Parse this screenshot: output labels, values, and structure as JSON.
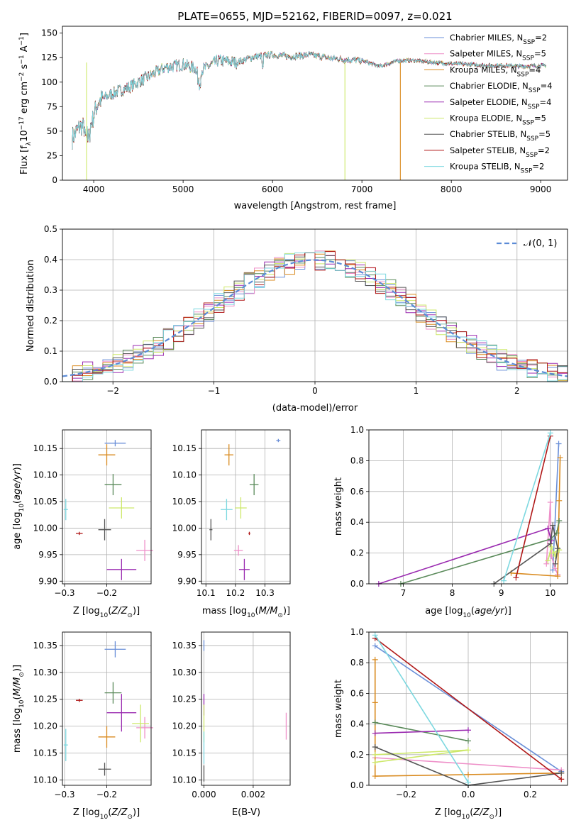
{
  "chart_data": [
    {
      "type": "line",
      "title": "PLATE=0655, MJD=52162, FIBERID=0097, z=0.021",
      "xlabel": "wavelength [Angstrom, rest frame]",
      "ylabel": "Flux [f_λ10^-17 erg cm^-2 s^-1 A^-1]",
      "xlim": [
        3650,
        9300
      ],
      "ylim": [
        0,
        157
      ],
      "xticks": [
        4000,
        5000,
        6000,
        7000,
        8000,
        9000
      ],
      "yticks": [
        0,
        25,
        50,
        75,
        100,
        125,
        150
      ],
      "legend_position": "top-right",
      "continuum_x": [
        3750,
        3850,
        3950,
        4050,
        4200,
        4400,
        4600,
        4800,
        5000,
        5200,
        5400,
        5600,
        5800,
        6000,
        6200,
        6400,
        6600,
        6800,
        7000,
        7200,
        7400,
        7600,
        7800,
        8000,
        8200,
        8400,
        8600,
        8800,
        9000
      ],
      "continuum_y": [
        42,
        55,
        52,
        80,
        88,
        95,
        105,
        115,
        118,
        112,
        122,
        120,
        126,
        128,
        126,
        128,
        125,
        123,
        122,
        116,
        122,
        122,
        120,
        119,
        118,
        117,
        117,
        116,
        117
      ],
      "series": [
        {
          "name": "Chabrier MILES, N_SSP=2",
          "label_main": "Chabrier MILES, N",
          "label_sub": "SSP",
          "label_tail": "=2",
          "color": "#6a8fd8"
        },
        {
          "name": "Salpeter MILES, N_SSP=5",
          "label_main": "Salpeter MILES, N",
          "label_sub": "SSP",
          "label_tail": "=5",
          "color": "#ee8fc8"
        },
        {
          "name": "Kroupa MILES, N_SSP=4",
          "label_main": "Kroupa MILES, N",
          "label_sub": "SSP",
          "label_tail": "=4",
          "color": "#d98a1e"
        },
        {
          "name": "Chabrier ELODIE, N_SSP=4",
          "label_main": "Chabrier ELODIE, N",
          "label_sub": "SSP",
          "label_tail": "=4",
          "color": "#5a8a5a"
        },
        {
          "name": "Salpeter ELODIE, N_SSP=4",
          "label_main": "Salpeter ELODIE, N",
          "label_sub": "SSP",
          "label_tail": "=4",
          "color": "#9a2ab0"
        },
        {
          "name": "Kroupa ELODIE, N_SSP=5",
          "label_main": "Kroupa ELODIE, N",
          "label_sub": "SSP",
          "label_tail": "=5",
          "color": "#cde86a"
        },
        {
          "name": "Chabrier STELIB, N_SSP=5",
          "label_main": "Chabrier STELIB, N",
          "label_sub": "SSP",
          "label_tail": "=5",
          "color": "#555555"
        },
        {
          "name": "Salpeter STELIB, N_SSP=2",
          "label_main": "Salpeter STELIB, N",
          "label_sub": "SSP",
          "label_tail": "=2",
          "color": "#b01818"
        },
        {
          "name": "Kroupa STELIB, N_SSP=2",
          "label_main": "Kroupa STELIB, N",
          "label_sub": "SSP",
          "label_tail": "=2",
          "color": "#7dd8e0"
        }
      ],
      "dropouts": [
        {
          "x": 3920,
          "color": "#cde86a"
        },
        {
          "x": 6810,
          "color": "#cde86a"
        },
        {
          "x": 7430,
          "color": "#d98a1e"
        }
      ]
    },
    {
      "type": "line",
      "xlabel": "(data-model)/error",
      "ylabel": "Normed distribution",
      "xlim": [
        -2.5,
        2.5
      ],
      "ylim": [
        0,
        0.5
      ],
      "xticks": [
        -2,
        -1,
        0,
        1,
        2
      ],
      "yticks": [
        0.0,
        0.1,
        0.2,
        0.3,
        0.4,
        0.5
      ],
      "legend_position": "top-right",
      "reference_curve": {
        "name": "N(0, 1)",
        "color": "#5b8bd6"
      },
      "bin_width": 0.1
    },
    {
      "type": "scatter",
      "xlabel": "Z [log10(Z/Z_sun)]",
      "ylabel": "age [log10(age/yr)]",
      "xlim": [
        -0.305,
        -0.095
      ],
      "ylim": [
        9.895,
        10.185
      ],
      "xticks": [
        -0.3,
        -0.2
      ],
      "yticks": [
        9.9,
        9.95,
        10.0,
        10.05,
        10.1,
        10.15
      ],
      "points": [
        {
          "x": -0.18,
          "xerr": 0.025,
          "y": 10.16,
          "yerr": 0.006,
          "color": "#6a8fd8"
        },
        {
          "x": -0.11,
          "xerr": 0.02,
          "y": 9.958,
          "yerr": 0.02,
          "color": "#ee8fc8"
        },
        {
          "x": -0.2,
          "xerr": 0.02,
          "y": 10.138,
          "yerr": 0.02,
          "color": "#d98a1e"
        },
        {
          "x": -0.185,
          "xerr": 0.02,
          "y": 10.082,
          "yerr": 0.02,
          "color": "#5a8a5a"
        },
        {
          "x": -0.165,
          "xerr": 0.035,
          "y": 9.922,
          "yerr": 0.02,
          "color": "#9a2ab0"
        },
        {
          "x": -0.165,
          "xerr": 0.03,
          "y": 10.038,
          "yerr": 0.02,
          "color": "#cde86a"
        },
        {
          "x": -0.205,
          "xerr": 0.015,
          "y": 9.997,
          "yerr": 0.02,
          "color": "#555555"
        },
        {
          "x": -0.265,
          "xerr": 0.008,
          "y": 9.99,
          "yerr": 0.003,
          "color": "#b01818"
        },
        {
          "x": -0.297,
          "xerr": 0.005,
          "y": 10.035,
          "yerr": 0.02,
          "color": "#7dd8e0"
        }
      ]
    },
    {
      "type": "scatter",
      "xlabel": "mass [log10(M/M_sun)]",
      "xlim": [
        10.085,
        10.385
      ],
      "ylim": [
        9.895,
        10.185
      ],
      "xticks": [
        10.1,
        10.2,
        10.3
      ],
      "yticks": [
        9.9,
        9.95,
        10.0,
        10.05,
        10.1,
        10.15
      ],
      "points": [
        {
          "x": 10.345,
          "xerr": 0.007,
          "y": 10.165,
          "yerr": 0.003,
          "color": "#6a8fd8"
        },
        {
          "x": 10.21,
          "xerr": 0.015,
          "y": 9.958,
          "yerr": 0.01,
          "color": "#ee8fc8"
        },
        {
          "x": 10.178,
          "xerr": 0.015,
          "y": 10.138,
          "yerr": 0.02,
          "color": "#d98a1e"
        },
        {
          "x": 10.263,
          "xerr": 0.015,
          "y": 10.082,
          "yerr": 0.02,
          "color": "#5a8a5a"
        },
        {
          "x": 10.23,
          "xerr": 0.018,
          "y": 9.922,
          "yerr": 0.02,
          "color": "#9a2ab0"
        },
        {
          "x": 10.218,
          "xerr": 0.02,
          "y": 10.038,
          "yerr": 0.02,
          "color": "#cde86a"
        },
        {
          "x": 10.117,
          "xerr": 0.005,
          "y": 9.997,
          "yerr": 0.02,
          "color": "#555555"
        },
        {
          "x": 10.247,
          "xerr": 0.003,
          "y": 9.99,
          "yerr": 0.003,
          "color": "#b01818"
        },
        {
          "x": 10.17,
          "xerr": 0.02,
          "y": 10.035,
          "yerr": 0.02,
          "color": "#7dd8e0"
        }
      ]
    },
    {
      "type": "line",
      "xlabel": "age [log10(age/yr)]",
      "ylabel": "mass weight",
      "xlim": [
        6.3,
        10.35
      ],
      "ylim": [
        0,
        1
      ],
      "xticks": [
        6,
        7,
        8,
        9,
        10
      ],
      "yticks": [
        0.0,
        0.2,
        0.4,
        0.6,
        0.8,
        1.0
      ],
      "series": [
        {
          "color": "#6a8fd8",
          "x": [
            10.05,
            10.17
          ],
          "y": [
            0.09,
            0.91
          ]
        },
        {
          "color": "#ee8fc8",
          "x": [
            9.92,
            10.0,
            10.02,
            10.1,
            10.15
          ],
          "y": [
            0.13,
            0.53,
            0.18,
            0.1,
            0.06
          ]
        },
        {
          "color": "#d98a1e",
          "x": [
            9.2,
            10.15,
            10.18,
            10.2
          ],
          "y": [
            0.07,
            0.05,
            0.54,
            0.82
          ]
        },
        {
          "color": "#5a8a5a",
          "x": [
            6.95,
            10.0,
            10.13,
            10.18
          ],
          "y": [
            0.0,
            0.29,
            0.33,
            0.41
          ]
        },
        {
          "color": "#9a2ab0",
          "x": [
            6.5,
            9.95,
            10.02
          ],
          "y": [
            0.0,
            0.36,
            0.28
          ]
        },
        {
          "color": "#cde86a",
          "x": [
            9.95,
            10.02,
            10.1,
            10.18,
            10.05
          ],
          "y": [
            0.15,
            0.24,
            0.18,
            0.22,
            0.2
          ]
        },
        {
          "color": "#555555",
          "x": [
            8.85,
            10.0,
            10.05,
            10.15,
            10.1
          ],
          "y": [
            0.0,
            0.26,
            0.38,
            0.23,
            0.13
          ]
        },
        {
          "color": "#b01818",
          "x": [
            9.3,
            10.0
          ],
          "y": [
            0.04,
            0.96
          ]
        },
        {
          "color": "#7dd8e0",
          "x": [
            9.05,
            10.0
          ],
          "y": [
            0.02,
            0.98
          ]
        }
      ]
    },
    {
      "type": "scatter",
      "xlabel": "Z [log10(Z/Z_sun)]",
      "ylabel": "mass [log10(M/M_sun)]",
      "xlim": [
        -0.305,
        -0.095
      ],
      "ylim": [
        10.09,
        10.375
      ],
      "xticks": [
        -0.3,
        -0.2
      ],
      "yticks": [
        10.1,
        10.15,
        10.2,
        10.25,
        10.3,
        10.35
      ],
      "points": [
        {
          "x": -0.18,
          "xerr": 0.025,
          "y": 10.343,
          "yerr": 0.015,
          "color": "#6a8fd8"
        },
        {
          "x": -0.11,
          "xerr": 0.02,
          "y": 10.197,
          "yerr": 0.02,
          "color": "#ee8fc8"
        },
        {
          "x": -0.2,
          "xerr": 0.02,
          "y": 10.18,
          "yerr": 0.02,
          "color": "#d98a1e"
        },
        {
          "x": -0.185,
          "xerr": 0.02,
          "y": 10.262,
          "yerr": 0.02,
          "color": "#5a8a5a"
        },
        {
          "x": -0.165,
          "xerr": 0.035,
          "y": 10.225,
          "yerr": 0.035,
          "color": "#9a2ab0"
        },
        {
          "x": -0.12,
          "xerr": 0.02,
          "y": 10.205,
          "yerr": 0.035,
          "color": "#cde86a"
        },
        {
          "x": -0.205,
          "xerr": 0.015,
          "y": 10.12,
          "yerr": 0.012,
          "color": "#555555"
        },
        {
          "x": -0.265,
          "xerr": 0.008,
          "y": 10.248,
          "yerr": 0.003,
          "color": "#b01818"
        },
        {
          "x": -0.297,
          "xerr": 0.005,
          "y": 10.165,
          "yerr": 0.03,
          "color": "#7dd8e0"
        }
      ]
    },
    {
      "type": "scatter",
      "xlabel": "E(B-V)",
      "xlim": [
        -0.0001,
        0.0035
      ],
      "ylim": [
        10.09,
        10.375
      ],
      "xticks": [
        0.0,
        0.002
      ],
      "yticks": [
        10.1,
        10.15,
        10.2,
        10.25,
        10.3,
        10.35
      ],
      "points": [
        {
          "x": 0.0,
          "y": 10.35,
          "yerr": 0.01,
          "color": "#6a8fd8"
        },
        {
          "x": 0.00334,
          "y": 10.2,
          "yerr": 0.025,
          "color": "#ee8fc8"
        },
        {
          "x": 0.0,
          "y": 10.24,
          "yerr": 0.02,
          "color": "#9a2ab0"
        },
        {
          "x": 0.0,
          "y": 10.205,
          "yerr": 0.035,
          "color": "#cde86a"
        },
        {
          "x": 0.0,
          "y": 10.112,
          "yerr": 0.015,
          "color": "#555555"
        },
        {
          "x": 0.0,
          "y": 10.16,
          "yerr": 0.03,
          "color": "#7dd8e0"
        }
      ]
    },
    {
      "type": "line",
      "xlabel": "Z [log10(Z/Z_sun)]",
      "ylabel": "mass weight",
      "xlim": [
        -0.32,
        0.32
      ],
      "ylim": [
        0,
        1
      ],
      "xticks": [
        -0.2,
        0.0,
        0.2
      ],
      "yticks": [
        0.0,
        0.2,
        0.4,
        0.6,
        0.8,
        1.0
      ],
      "series": [
        {
          "color": "#6a8fd8",
          "x": [
            -0.3,
            0.3
          ],
          "y": [
            0.91,
            0.09
          ]
        },
        {
          "color": "#ee8fc8",
          "x": [
            -0.3,
            0.3
          ],
          "y": [
            0.18,
            0.1
          ]
        },
        {
          "color": "#d98a1e",
          "x": [
            -0.3,
            -0.3,
            -0.3,
            0.0,
            0.3
          ],
          "y": [
            0.82,
            0.54,
            0.06,
            0.07,
            0.08
          ]
        },
        {
          "color": "#5a8a5a",
          "x": [
            -0.3,
            0.0
          ],
          "y": [
            0.41,
            0.29
          ]
        },
        {
          "color": "#9a2ab0",
          "x": [
            -0.3,
            0.0
          ],
          "y": [
            0.34,
            0.36
          ]
        },
        {
          "color": "#cde86a",
          "x": [
            -0.3,
            0.0,
            -0.3
          ],
          "y": [
            0.2,
            0.23,
            0.15
          ]
        },
        {
          "color": "#555555",
          "x": [
            -0.3,
            0.0,
            0.3
          ],
          "y": [
            0.25,
            0.0,
            0.08
          ]
        },
        {
          "color": "#b01818",
          "x": [
            -0.3,
            0.3
          ],
          "y": [
            0.96,
            0.04
          ]
        },
        {
          "color": "#7dd8e0",
          "x": [
            -0.3,
            0.0
          ],
          "y": [
            0.98,
            0.02
          ]
        }
      ]
    }
  ]
}
